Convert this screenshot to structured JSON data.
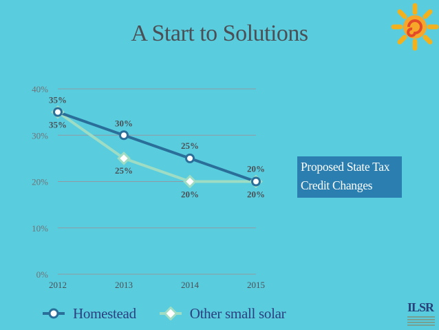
{
  "slide": {
    "title": "A Start to Solutions",
    "callout": "Proposed State Tax Credit Changes",
    "logo_text": "ILSR"
  },
  "colors": {
    "background": "#59cdde",
    "homestead": "#2a6f9a",
    "other_small_solar": "#9fdcc4",
    "callout_bg": "#2a7fb0",
    "legend_text": "#2b3f80"
  },
  "chart_data": {
    "type": "line",
    "categories": [
      "2012",
      "2013",
      "2014",
      "2015"
    ],
    "y_ticks": [
      "0%",
      "10%",
      "20%",
      "30%",
      "40%"
    ],
    "ylim": [
      0,
      40
    ],
    "grid": true,
    "legend_position": "bottom-left",
    "series": [
      {
        "name": "Homestead",
        "values": [
          35,
          30,
          25,
          20
        ],
        "labels": [
          "35%",
          "30%",
          "25%",
          "20%"
        ]
      },
      {
        "name": "Other small solar",
        "values": [
          35,
          25,
          20,
          20
        ],
        "labels": [
          "35%",
          "25%",
          "20%",
          "20%"
        ]
      }
    ]
  }
}
